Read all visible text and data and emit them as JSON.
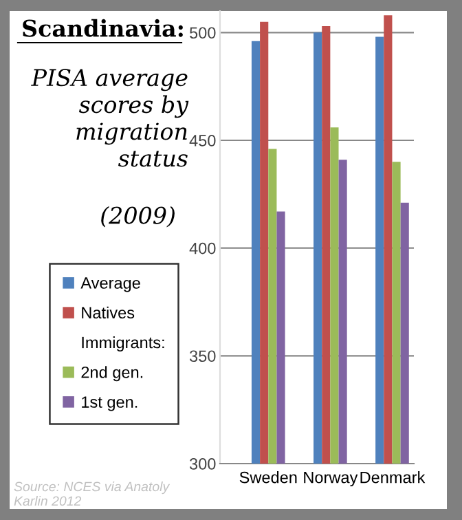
{
  "chart_data": {
    "type": "bar",
    "title": "Scandinavia:",
    "subtitle": "PISA average scores by migration status",
    "categories": [
      "Sweden",
      "Norway",
      "Denmark"
    ],
    "series": [
      {
        "name": "Average",
        "color": "#4f81bd",
        "values": [
          496,
          500,
          498
        ]
      },
      {
        "name": "Natives",
        "color": "#c0504d",
        "values": [
          505,
          503,
          508
        ]
      },
      {
        "name": "2nd gen.",
        "color": "#9bbb59",
        "values": [
          446,
          456,
          440
        ]
      },
      {
        "name": "1st gen.",
        "color": "#8064a2",
        "values": [
          417,
          441,
          421
        ]
      }
    ],
    "legend_title": "Immigrants:",
    "annotations": [
      "(2009)",
      "Source: NCES via Anatoly Karlin 2012"
    ],
    "ylim": [
      300,
      510
    ],
    "yticks": [
      300,
      350,
      400,
      450,
      500
    ],
    "grid": "y",
    "legend": "left"
  }
}
